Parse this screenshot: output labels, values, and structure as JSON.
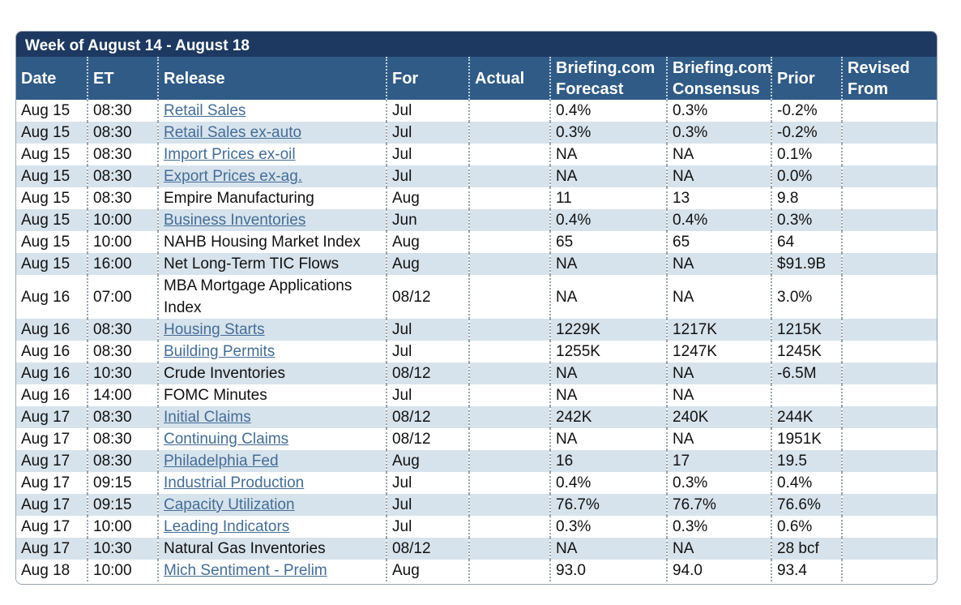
{
  "week_title": "Week of August 14 - August 18",
  "columns": [
    "Date",
    "ET",
    "Release",
    "For",
    "Actual",
    "Briefing.com Forecast",
    "Briefing.com Consensus",
    "Prior",
    "Revised From"
  ],
  "rows": [
    {
      "date": "Aug 15",
      "et": "08:30",
      "release": "Retail Sales",
      "link": true,
      "for": "Jul",
      "actual": "",
      "forecast": "0.4%",
      "consensus": "0.3%",
      "prior": "-0.2%",
      "revised": ""
    },
    {
      "date": "Aug 15",
      "et": "08:30",
      "release": "Retail Sales ex-auto",
      "link": true,
      "for": "Jul",
      "actual": "",
      "forecast": "0.3%",
      "consensus": "0.3%",
      "prior": "-0.2%",
      "revised": ""
    },
    {
      "date": "Aug 15",
      "et": "08:30",
      "release": "Import Prices ex-oil",
      "link": true,
      "for": "Jul",
      "actual": "",
      "forecast": "NA",
      "consensus": "NA",
      "prior": "0.1%",
      "revised": ""
    },
    {
      "date": "Aug 15",
      "et": "08:30",
      "release": "Export Prices ex-ag.",
      "link": true,
      "for": "Jul",
      "actual": "",
      "forecast": "NA",
      "consensus": "NA",
      "prior": "0.0%",
      "revised": ""
    },
    {
      "date": "Aug 15",
      "et": "08:30",
      "release": "Empire Manufacturing",
      "link": false,
      "for": "Aug",
      "actual": "",
      "forecast": "11",
      "consensus": "13",
      "prior": "9.8",
      "revised": ""
    },
    {
      "date": "Aug 15",
      "et": "10:00",
      "release": "Business Inventories",
      "link": true,
      "for": "Jun",
      "actual": "",
      "forecast": "0.4%",
      "consensus": "0.4%",
      "prior": "0.3%",
      "revised": ""
    },
    {
      "date": "Aug 15",
      "et": "10:00",
      "release": "NAHB Housing Market Index",
      "link": false,
      "for": "Aug",
      "actual": "",
      "forecast": "65",
      "consensus": "65",
      "prior": "64",
      "revised": ""
    },
    {
      "date": "Aug 15",
      "et": "16:00",
      "release": "Net Long-Term TIC Flows",
      "link": false,
      "for": "Aug",
      "actual": "",
      "forecast": "NA",
      "consensus": "NA",
      "prior": "$91.9B",
      "revised": ""
    },
    {
      "date": "Aug 16",
      "et": "07:00",
      "release": "MBA Mortgage Applications Index",
      "link": false,
      "tall": true,
      "for": "08/12",
      "actual": "",
      "forecast": "NA",
      "consensus": "NA",
      "prior": "3.0%",
      "revised": ""
    },
    {
      "date": "Aug 16",
      "et": "08:30",
      "release": "Housing Starts",
      "link": true,
      "for": "Jul",
      "actual": "",
      "forecast": "1229K",
      "consensus": "1217K",
      "prior": "1215K",
      "revised": ""
    },
    {
      "date": "Aug 16",
      "et": "08:30",
      "release": "Building Permits",
      "link": true,
      "for": "Jul",
      "actual": "",
      "forecast": "1255K",
      "consensus": "1247K",
      "prior": "1245K",
      "revised": ""
    },
    {
      "date": "Aug 16",
      "et": "10:30",
      "release": "Crude Inventories",
      "link": false,
      "for": "08/12",
      "actual": "",
      "forecast": "NA",
      "consensus": "NA",
      "prior": "-6.5M",
      "revised": ""
    },
    {
      "date": "Aug 16",
      "et": "14:00",
      "release": "FOMC Minutes",
      "link": false,
      "for": "Jul",
      "actual": "",
      "forecast": "NA",
      "consensus": "NA",
      "prior": "",
      "revised": ""
    },
    {
      "date": "Aug 17",
      "et": "08:30",
      "release": "Initial Claims",
      "link": true,
      "for": "08/12",
      "actual": "",
      "forecast": "242K",
      "consensus": "240K",
      "prior": "244K",
      "revised": ""
    },
    {
      "date": "Aug 17",
      "et": "08:30",
      "release": "Continuing Claims",
      "link": true,
      "for": "08/12",
      "actual": "",
      "forecast": "NA",
      "consensus": "NA",
      "prior": "1951K",
      "revised": ""
    },
    {
      "date": "Aug 17",
      "et": "08:30",
      "release": "Philadelphia Fed",
      "link": true,
      "for": "Aug",
      "actual": "",
      "forecast": "16",
      "consensus": "17",
      "prior": "19.5",
      "revised": ""
    },
    {
      "date": "Aug 17",
      "et": "09:15",
      "release": "Industrial Production",
      "link": true,
      "for": "Jul",
      "actual": "",
      "forecast": "0.4%",
      "consensus": "0.3%",
      "prior": "0.4%",
      "revised": ""
    },
    {
      "date": "Aug 17",
      "et": "09:15",
      "release": "Capacity Utilization",
      "link": true,
      "for": "Jul",
      "actual": "",
      "forecast": "76.7%",
      "consensus": "76.7%",
      "prior": "76.6%",
      "revised": ""
    },
    {
      "date": "Aug 17",
      "et": "10:00",
      "release": "Leading Indicators",
      "link": true,
      "for": "Jul",
      "actual": "",
      "forecast": "0.3%",
      "consensus": "0.3%",
      "prior": "0.6%",
      "revised": ""
    },
    {
      "date": "Aug 17",
      "et": "10:30",
      "release": "Natural Gas Inventories",
      "link": false,
      "for": "08/12",
      "actual": "",
      "forecast": "NA",
      "consensus": "NA",
      "prior": "28 bcf",
      "revised": ""
    },
    {
      "date": "Aug 18",
      "et": "10:00",
      "release": "Mich Sentiment - Prelim",
      "link": true,
      "for": "Aug",
      "actual": "",
      "forecast": "93.0",
      "consensus": "94.0",
      "prior": "93.4",
      "revised": ""
    }
  ]
}
